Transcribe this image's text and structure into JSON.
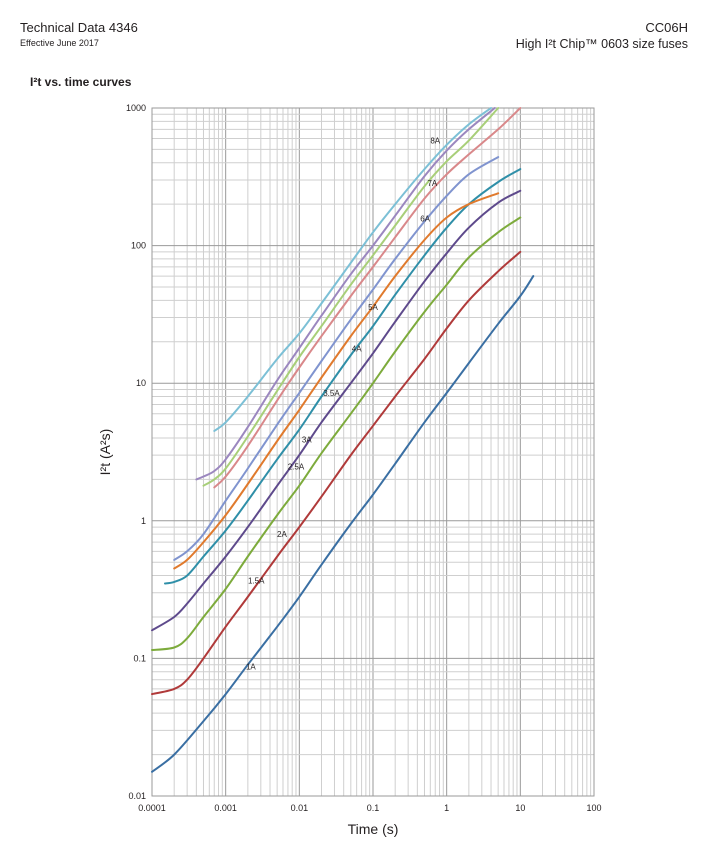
{
  "header": {
    "doc_title": "Technical Data 4346",
    "doc_date": "Effective June 2017",
    "product_code": "CC06H",
    "product_name": "High I²t Chip™ 0603 size fuses"
  },
  "section_title": "I²t vs. time curves",
  "chart_data": {
    "type": "line",
    "title": "",
    "xlabel": "Time (s)",
    "ylabel": "I²t (A²s)",
    "x_scale": "log",
    "y_scale": "log",
    "xlim": [
      0.0001,
      100
    ],
    "ylim": [
      0.01,
      1000
    ],
    "grid": true,
    "x_tick_labels": [
      "0.0001",
      "0.001",
      "0.01",
      "0.1",
      "1",
      "10",
      "100"
    ],
    "y_tick_labels": [
      "0.01",
      "0.1",
      "1",
      "10",
      "100",
      "1000"
    ],
    "series": [
      {
        "name": "1A",
        "color": "#3a6fa3",
        "x": [
          0.0001,
          0.0002,
          0.0005,
          0.001,
          0.002,
          0.005,
          0.01,
          0.02,
          0.05,
          0.1,
          0.2,
          0.5,
          1,
          2,
          5,
          10,
          15
        ],
        "y": [
          0.015,
          0.02,
          0.035,
          0.055,
          0.09,
          0.17,
          0.28,
          0.48,
          0.95,
          1.55,
          2.6,
          5.2,
          8.5,
          14,
          27,
          43,
          60
        ],
        "label_at": [
          0.0022,
          0.083
        ]
      },
      {
        "name": "1.5A",
        "color": "#b03a3a",
        "x": [
          0.0001,
          0.0002,
          0.0003,
          0.0005,
          0.001,
          0.002,
          0.005,
          0.01,
          0.02,
          0.05,
          0.1,
          0.2,
          0.5,
          1,
          2,
          5,
          10
        ],
        "y": [
          0.055,
          0.06,
          0.07,
          0.1,
          0.17,
          0.28,
          0.55,
          0.9,
          1.5,
          3,
          4.9,
          8,
          15,
          25,
          40,
          65,
          90
        ],
        "label_at": [
          0.0026,
          0.35
        ]
      },
      {
        "name": "2A",
        "color": "#7dab3c",
        "x": [
          0.0001,
          0.0002,
          0.0003,
          0.0005,
          0.001,
          0.002,
          0.005,
          0.01,
          0.02,
          0.05,
          0.1,
          0.2,
          0.5,
          1,
          2,
          5,
          10
        ],
        "y": [
          0.115,
          0.12,
          0.14,
          0.2,
          0.32,
          0.55,
          1.1,
          1.8,
          3.1,
          6,
          10,
          17,
          33,
          52,
          82,
          125,
          160
        ],
        "label_at": [
          0.0058,
          0.76
        ]
      },
      {
        "name": "2.5A",
        "color": "#5e4a8c",
        "x": [
          0.0001,
          0.0002,
          0.0003,
          0.0005,
          0.001,
          0.002,
          0.005,
          0.01,
          0.02,
          0.05,
          0.1,
          0.2,
          0.5,
          1,
          2,
          5,
          10
        ],
        "y": [
          0.16,
          0.2,
          0.25,
          0.35,
          0.55,
          0.9,
          1.8,
          3,
          5.2,
          10,
          16.5,
          28,
          55,
          88,
          135,
          205,
          250
        ],
        "label_at": [
          0.009,
          2.35
        ]
      },
      {
        "name": "3A",
        "color": "#2f8fa8",
        "x": [
          0.00015,
          0.0002,
          0.0003,
          0.0005,
          0.001,
          0.002,
          0.005,
          0.01,
          0.02,
          0.05,
          0.1,
          0.2,
          0.5,
          1,
          2,
          5,
          10
        ],
        "y": [
          0.35,
          0.36,
          0.4,
          0.55,
          0.85,
          1.4,
          2.8,
          4.6,
          8,
          16,
          26,
          44,
          85,
          135,
          200,
          290,
          360
        ],
        "label_at": [
          0.0126,
          3.7
        ]
      },
      {
        "name": "3.5A",
        "color": "#e07a2d",
        "x": [
          0.0002,
          0.0003,
          0.0005,
          0.001,
          0.002,
          0.005,
          0.01,
          0.02,
          0.05,
          0.1,
          0.2,
          0.5,
          1,
          2,
          5
        ],
        "y": [
          0.45,
          0.52,
          0.7,
          1.1,
          1.85,
          3.8,
          6.4,
          11,
          22,
          36,
          60,
          110,
          160,
          200,
          240
        ],
        "label_at": [
          0.0273,
          8.1
        ]
      },
      {
        "name": "4A",
        "color": "#8094cf",
        "x": [
          0.0002,
          0.0003,
          0.0005,
          0.001,
          0.002,
          0.005,
          0.01,
          0.02,
          0.05,
          0.1,
          0.2,
          0.5,
          1,
          2,
          5
        ],
        "y": [
          0.52,
          0.6,
          0.8,
          1.4,
          2.4,
          5,
          8.5,
          14.5,
          29,
          48,
          80,
          150,
          230,
          330,
          440
        ],
        "label_at": [
          0.06,
          17
        ]
      },
      {
        "name": "5A",
        "color": "#9b87bf",
        "x": [
          0.0004,
          0.0005,
          0.0007,
          0.001,
          0.002,
          0.005,
          0.01,
          0.02,
          0.05,
          0.1,
          0.2,
          0.5,
          1,
          2,
          4.5
        ],
        "y": [
          2,
          2.1,
          2.3,
          2.8,
          4.8,
          10.5,
          18,
          31,
          62,
          100,
          165,
          320,
          490,
          700,
          1000
        ],
        "label_at": [
          0.1,
          34
        ]
      },
      {
        "name": "6A",
        "color": "#d9888a",
        "x": [
          0.0007,
          0.001,
          0.002,
          0.005,
          0.01,
          0.02,
          0.05,
          0.1,
          0.2,
          0.5,
          1,
          2,
          5,
          10
        ],
        "y": [
          1.75,
          2.1,
          3.5,
          7.5,
          13,
          22,
          43,
          70,
          115,
          220,
          330,
          460,
          700,
          1000
        ],
        "label_at": [
          0.51,
          150
        ]
      },
      {
        "name": "7A",
        "color": "#a8cf79",
        "x": [
          0.0005,
          0.0007,
          0.001,
          0.002,
          0.005,
          0.01,
          0.02,
          0.05,
          0.1,
          0.2,
          0.5,
          1,
          2,
          5
        ],
        "y": [
          1.8,
          2,
          2.4,
          4.1,
          8.8,
          15.5,
          26,
          52,
          85,
          140,
          270,
          410,
          580,
          1000
        ],
        "label_at": [
          0.64,
          270
        ]
      },
      {
        "name": "8A",
        "color": "#7cc0d6",
        "x": [
          0.0007,
          0.001,
          0.002,
          0.005,
          0.01,
          0.02,
          0.05,
          0.1,
          0.2,
          0.5,
          1,
          2,
          4
        ],
        "y": [
          4.5,
          5.2,
          8,
          15,
          23,
          38,
          75,
          125,
          200,
          360,
          540,
          760,
          1000
        ],
        "label_at": [
          0.7,
          550
        ]
      }
    ]
  }
}
